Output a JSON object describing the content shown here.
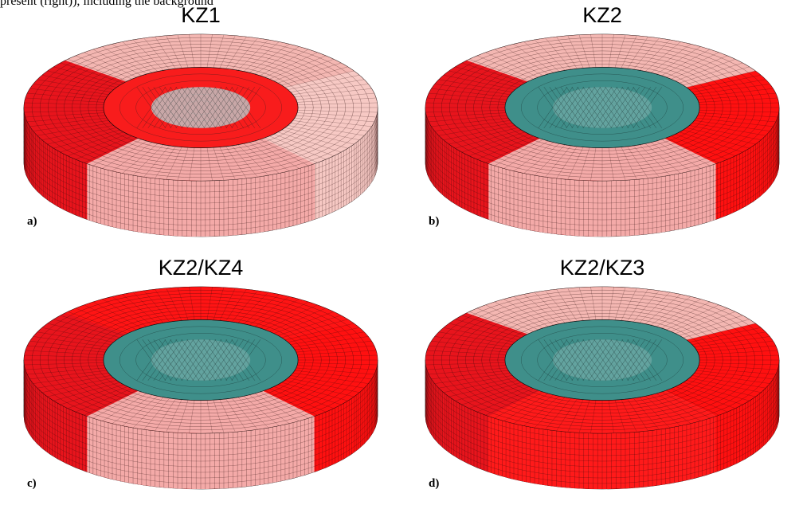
{
  "caption_fragment": "present (right)), including the background",
  "panels": [
    {
      "title": "KZ1",
      "letter": "a)",
      "colors": {
        "left": "#e8141c",
        "front": "#f4aaa8",
        "right": "#f7c9c4",
        "back": "#f4b7b2",
        "center": "#f81c1c",
        "core": "#c0c0c0"
      }
    },
    {
      "title": "KZ2",
      "letter": "b)",
      "colors": {
        "left": "#e8141c",
        "front": "#f4aaa8",
        "right": "#ff1010",
        "back": "#f4b7b2",
        "center": "#3f8f8a",
        "core": "#6aa7a2"
      }
    },
    {
      "title": "KZ2/KZ4",
      "letter": "c)",
      "colors": {
        "left": "#e8141c",
        "front": "#f4aaa8",
        "right": "#ff1010",
        "back": "#ff1414",
        "center": "#3f8f8a",
        "core": "#6aa7a2"
      }
    },
    {
      "title": "KZ2/KZ3",
      "letter": "d)",
      "colors": {
        "left": "#e8141c",
        "front": "#ff1a1a",
        "right": "#ff1010",
        "back": "#f4b7b2",
        "center": "#3f8f8a",
        "core": "#6aa7a2"
      }
    }
  ]
}
